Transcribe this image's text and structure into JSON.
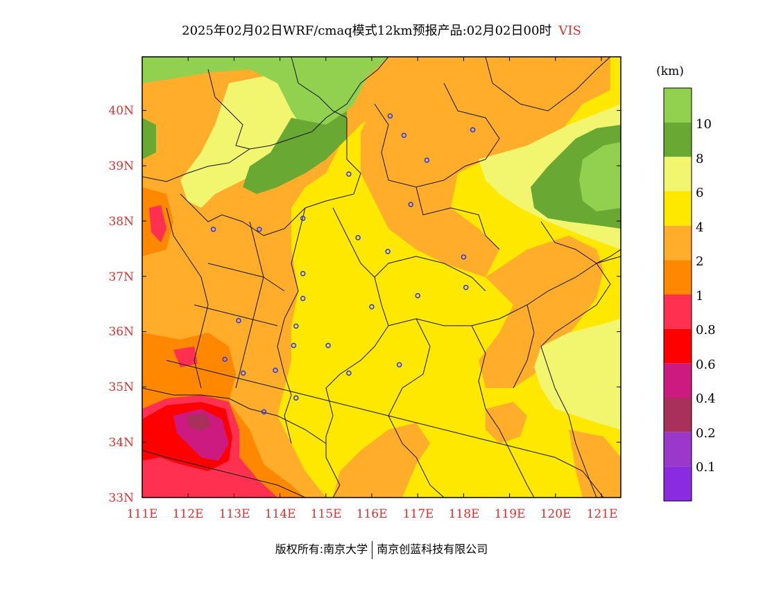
{
  "title": {
    "main": "2025年02月02日WRF/cmaq模式12km预报产品:02月02日00时",
    "variable": "VIS"
  },
  "colorbar": {
    "unit": "(km)",
    "bands": [
      {
        "color": "#92d050",
        "label": "10"
      },
      {
        "color": "#6aa834",
        "label": "8"
      },
      {
        "color": "#f2f56e",
        "label": "6"
      },
      {
        "color": "#ffe800",
        "label": "4"
      },
      {
        "color": "#ffad2a",
        "label": "2"
      },
      {
        "color": "#ff8800",
        "label": "1"
      },
      {
        "color": "#ff3050",
        "label": "0.8"
      },
      {
        "color": "#ff0000",
        "label": "0.6"
      },
      {
        "color": "#cc1a80",
        "label": "0.4"
      },
      {
        "color": "#a8305a",
        "label": "0.2"
      },
      {
        "color": "#9a38cc",
        "label": "0.1"
      },
      {
        "color": "#8a2be2",
        "label": ""
      }
    ]
  },
  "axes": {
    "lon_ticks": [
      "111E",
      "112E",
      "113E",
      "114E",
      "115E",
      "116E",
      "117E",
      "118E",
      "119E",
      "120E",
      "121E"
    ],
    "lat_ticks": [
      "33N",
      "34N",
      "35N",
      "36N",
      "37N",
      "38N",
      "39N",
      "40N"
    ]
  },
  "stations": [
    [
      116.4,
      39.9
    ],
    [
      116.7,
      39.55
    ],
    [
      117.2,
      39.1
    ],
    [
      118.2,
      39.65
    ],
    [
      116.85,
      38.3
    ],
    [
      115.5,
      38.85
    ],
    [
      114.5,
      38.05
    ],
    [
      112.55,
      37.85
    ],
    [
      113.55,
      37.85
    ],
    [
      115.7,
      37.7
    ],
    [
      116.35,
      37.45
    ],
    [
      118.0,
      37.35
    ],
    [
      114.5,
      37.05
    ],
    [
      118.05,
      36.8
    ],
    [
      117.0,
      36.65
    ],
    [
      114.5,
      36.6
    ],
    [
      116.0,
      36.45
    ],
    [
      113.1,
      36.2
    ],
    [
      114.35,
      36.1
    ],
    [
      115.05,
      35.75
    ],
    [
      114.3,
      35.75
    ],
    [
      112.8,
      35.5
    ],
    [
      113.2,
      35.25
    ],
    [
      113.9,
      35.3
    ],
    [
      115.5,
      35.25
    ],
    [
      116.6,
      35.4
    ],
    [
      114.35,
      34.8
    ],
    [
      113.65,
      34.55
    ]
  ],
  "footer": {
    "left": "版权所有:南京大学",
    "right": "南京创蓝科技有限公司"
  },
  "colors": {
    "axis_label": "#e03030",
    "station": "#2c3cf0",
    "boundary": "#111111"
  }
}
